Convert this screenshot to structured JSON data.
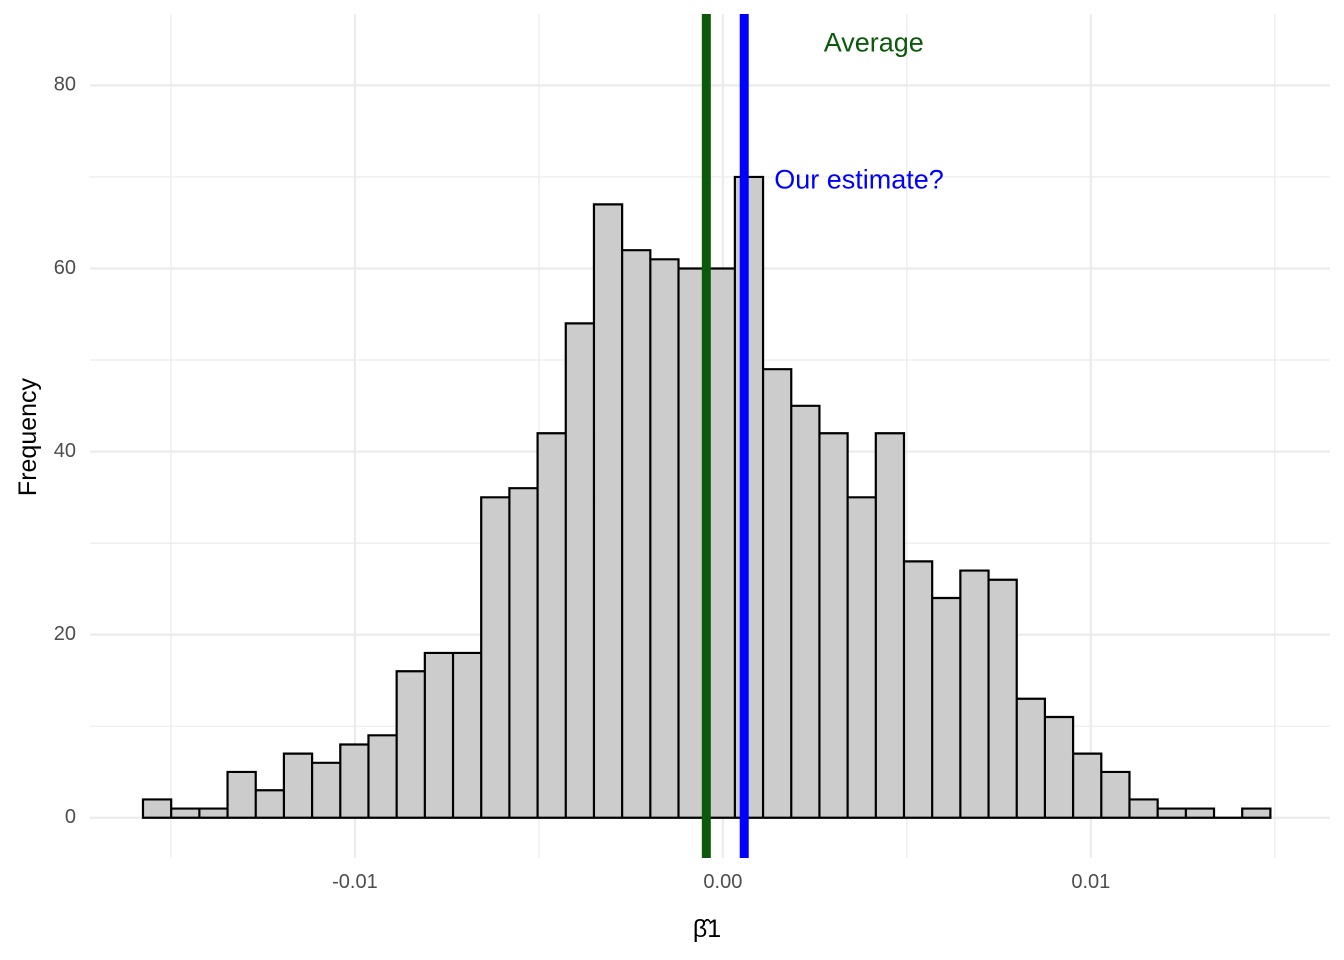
{
  "chart_data": {
    "type": "bar",
    "subtype": "histogram",
    "xlabel": "β̂1",
    "ylabel": "Frequency",
    "xlim": [
      -0.0172,
      0.0165
    ],
    "ylim": [
      -4.4,
      87.8
    ],
    "x_ticks": [
      {
        "value": -0.01,
        "label": "-0.01"
      },
      {
        "value": 0.0,
        "label": "0.00"
      },
      {
        "value": 0.01,
        "label": "0.01"
      }
    ],
    "y_ticks": [
      {
        "value": 0,
        "label": "0"
      },
      {
        "value": 20,
        "label": "20"
      },
      {
        "value": 40,
        "label": "40"
      },
      {
        "value": 60,
        "label": "60"
      },
      {
        "value": 80,
        "label": "80"
      }
    ],
    "grid": true,
    "bin_start": -0.01576,
    "bin_width": 0.000766,
    "counts": [
      2,
      1,
      1,
      5,
      3,
      7,
      6,
      8,
      9,
      16,
      18,
      18,
      35,
      36,
      42,
      54,
      67,
      62,
      61,
      60,
      60,
      70,
      49,
      45,
      42,
      35,
      42,
      28,
      24,
      27,
      26,
      13,
      11,
      7,
      5,
      2,
      1,
      1,
      0,
      1
    ],
    "bar_fill": "#cccccc",
    "bar_stroke": "#000000",
    "vlines": [
      {
        "x": -0.00045,
        "color": "#0b5a0b",
        "label": "Average",
        "label_x": 0.0041,
        "label_y": 84.5
      },
      {
        "x": 0.00058,
        "color": "#0000ff",
        "label": "Our estimate?",
        "label_x": 0.0037,
        "label_y": 69.5
      }
    ]
  }
}
